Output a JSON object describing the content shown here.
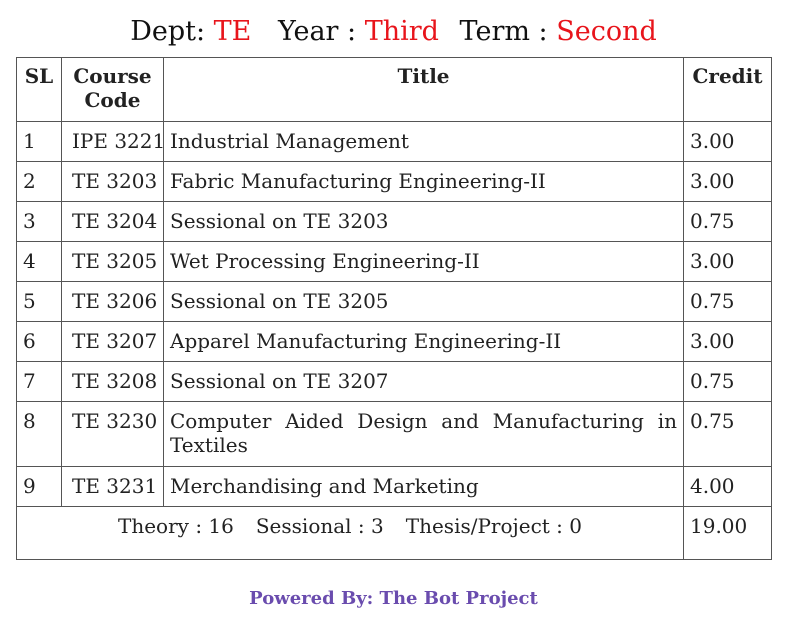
{
  "header": {
    "dept_label": "Dept:",
    "dept_value": "TE",
    "year_label": "Year :",
    "year_value": "Third",
    "term_label": "Term :",
    "term_value": "Second"
  },
  "table": {
    "columns": {
      "sl": "SL",
      "code_line1": "Course",
      "code_line2": "Code",
      "title": "Title",
      "credit": "Credit"
    },
    "rows": [
      {
        "sl": "1",
        "code": "IPE 3221",
        "title": "Industrial Management",
        "credit": "3.00"
      },
      {
        "sl": "2",
        "code": "TE 3203",
        "title": "Fabric Manufacturing Engineering-II",
        "credit": "3.00"
      },
      {
        "sl": "3",
        "code": "TE 3204",
        "title": "Sessional on TE 3203",
        "credit": "0.75"
      },
      {
        "sl": "4",
        "code": "TE 3205",
        "title": "Wet Processing Engineering-II",
        "credit": "3.00"
      },
      {
        "sl": "5",
        "code": "TE 3206",
        "title": "Sessional on TE 3205",
        "credit": "0.75"
      },
      {
        "sl": "6",
        "code": "TE 3207",
        "title": "Apparel Manufacturing Engineering-II",
        "credit": "3.00"
      },
      {
        "sl": "7",
        "code": "TE 3208",
        "title": "Sessional on TE 3207",
        "credit": "0.75"
      },
      {
        "sl": "8",
        "code": "TE 3230",
        "title": "Computer Aided Design and Manufacturing in Textiles",
        "credit": "0.75"
      },
      {
        "sl": "9",
        "code": "TE 3231",
        "title": "Merchandising and Marketing",
        "credit": "4.00"
      }
    ],
    "summary": {
      "theory": "Theory : 16",
      "sessional": "Sessional : 3",
      "thesis": "Thesis/Project : 0",
      "total_credit": "19.00"
    }
  },
  "footer": {
    "text": "Powered By: The Bot Project"
  },
  "colors": {
    "highlight": "#e8141b",
    "footer": "#6a4cae"
  }
}
